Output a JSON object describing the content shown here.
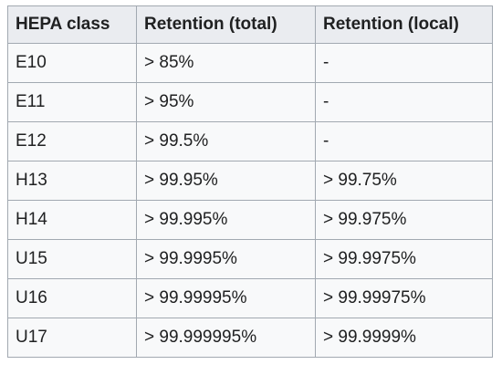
{
  "table": {
    "headers": [
      "HEPA class",
      "Retention (total)",
      "Retention (local)"
    ],
    "rows": [
      [
        "E10",
        "> 85%",
        "-"
      ],
      [
        "E11",
        "> 95%",
        "-"
      ],
      [
        "E12",
        "> 99.5%",
        "-"
      ],
      [
        "H13",
        "> 99.95%",
        "> 99.75%"
      ],
      [
        "H14",
        "> 99.995%",
        "> 99.975%"
      ],
      [
        "U15",
        "> 99.9995%",
        "> 99.9975%"
      ],
      [
        "U16",
        "> 99.99995%",
        "> 99.99975%"
      ],
      [
        "U17",
        "> 99.999995%",
        "> 99.9999%"
      ]
    ]
  }
}
